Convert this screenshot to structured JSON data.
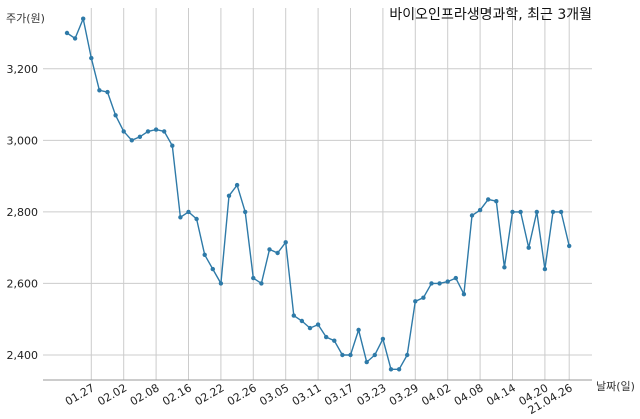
{
  "chart_data": {
    "type": "line",
    "title": "바이오인프라생명과학, 최근 3개월",
    "ylabel": "주가(원)",
    "xlabel": "날짜(일)",
    "ylim": [
      2330,
      3370
    ],
    "yticks": [
      2400,
      2600,
      2800,
      3000,
      3200
    ],
    "ytick_labels": [
      "2,400",
      "2,600",
      "2,800",
      "3,000",
      "3,200"
    ],
    "grid": true,
    "line_color": "#2e7aa8",
    "x_tick_labels": [
      {
        "label": "01.27",
        "index": 3
      },
      {
        "label": "02.02",
        "index": 7
      },
      {
        "label": "02.08",
        "index": 11
      },
      {
        "label": "02.16",
        "index": 15
      },
      {
        "label": "02.22",
        "index": 19
      },
      {
        "label": "02.26",
        "index": 23
      },
      {
        "label": "03.05",
        "index": 27
      },
      {
        "label": "03.11",
        "index": 31
      },
      {
        "label": "03.17",
        "index": 35
      },
      {
        "label": "03.23",
        "index": 39
      },
      {
        "label": "03.29",
        "index": 43
      },
      {
        "label": "04.02",
        "index": 47
      },
      {
        "label": "04.08",
        "index": 51
      },
      {
        "label": "04.14",
        "index": 55
      },
      {
        "label": "04.20",
        "index": 59
      },
      {
        "label": "21.04.26",
        "index": 62
      }
    ],
    "values": [
      3300,
      3285,
      3340,
      3230,
      3140,
      3135,
      3070,
      3025,
      3000,
      3010,
      3025,
      3030,
      3025,
      2985,
      2785,
      2800,
      2780,
      2680,
      2640,
      2600,
      2845,
      2875,
      2800,
      2615,
      2600,
      2695,
      2685,
      2715,
      2510,
      2495,
      2475,
      2485,
      2450,
      2440,
      2400,
      2400,
      2470,
      2380,
      2400,
      2445,
      2360,
      2360,
      2400,
      2550,
      2560,
      2600,
      2600,
      2605,
      2615,
      2570,
      2790,
      2805,
      2835,
      2830,
      2645,
      2800,
      2800,
      2700,
      2800,
      2640,
      2800,
      2800,
      2705
    ]
  }
}
